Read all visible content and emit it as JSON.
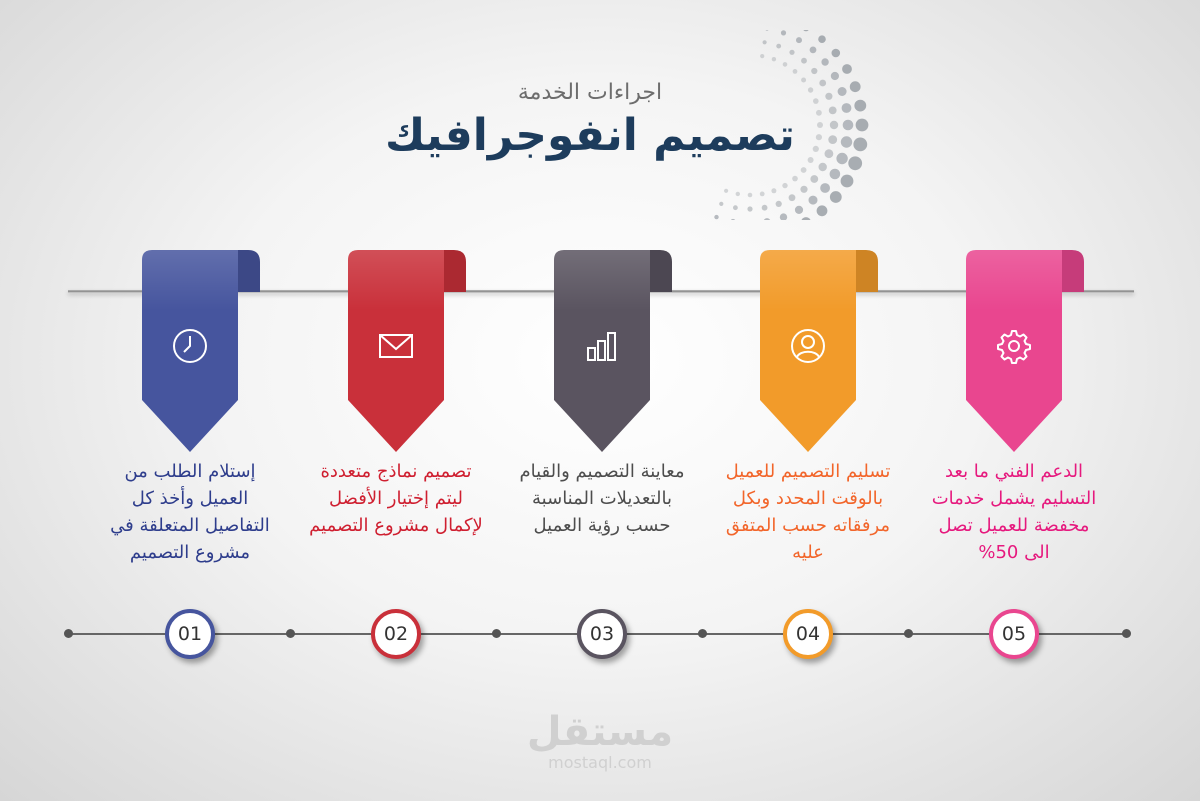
{
  "header": {
    "subtitle": "اجراءات الخدمة",
    "title": "تصميم انفوجرافيك"
  },
  "steps": [
    {
      "number": "01",
      "icon": "clock-icon",
      "color": "#46559e",
      "text_color": "#2e3d8c",
      "text": "إستلام الطلب من العميل وأخذ كل التفاصيل المتعلقة في مشروع التصميم"
    },
    {
      "number": "02",
      "icon": "envelope-icon",
      "color": "#c9303a",
      "text_color": "#cf1f30",
      "text": "تصميم نماذج متعددة ليتم إختيار الأفضل لإكمال مشروع التصميم"
    },
    {
      "number": "03",
      "icon": "bar-chart-icon",
      "color": "#5a5460",
      "text_color": "#4d4d4d",
      "text": "معاينة التصميم والقيام بالتعديلات المناسبة حسب رؤية العميل"
    },
    {
      "number": "04",
      "icon": "user-icon",
      "color": "#f29b2a",
      "text_color": "#f2652a",
      "text": "تسليم التصميم للعميل بالوقت المحدد وبكل مرفقاته حسب المتفق عليه"
    },
    {
      "number": "05",
      "icon": "gear-icon",
      "color": "#e9468f",
      "text_color": "#e6197e",
      "text": "الدعم الفني ما بعد التسليم يشمل خدمات مخفضة للعميل تصل الى 50%"
    }
  ],
  "watermark": {
    "arabic": "مستقل",
    "latin": "mostaql.com"
  }
}
